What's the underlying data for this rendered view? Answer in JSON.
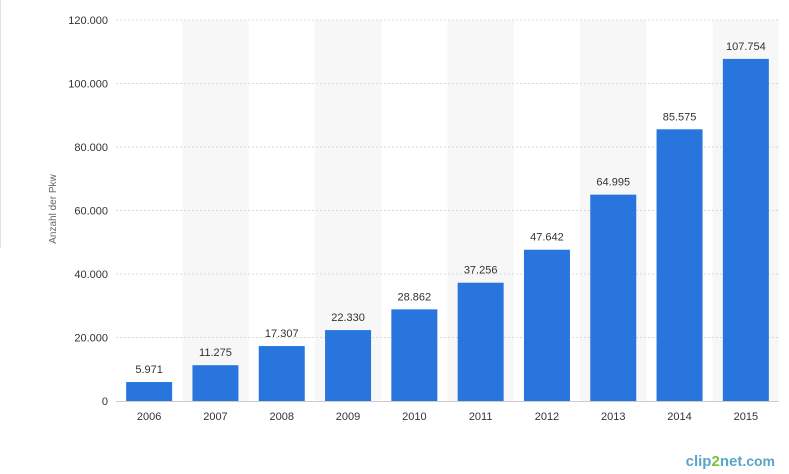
{
  "chart_data": {
    "type": "bar",
    "categories": [
      "2006",
      "2007",
      "2008",
      "2009",
      "2010",
      "2011",
      "2012",
      "2013",
      "2014",
      "2015"
    ],
    "values": [
      5971,
      11275,
      17307,
      22330,
      28862,
      37256,
      47642,
      64995,
      85575,
      107754
    ],
    "value_labels": [
      "5.971",
      "11.275",
      "17.307",
      "22.330",
      "28.862",
      "37.256",
      "47.642",
      "64.995",
      "85.575",
      "107.754"
    ],
    "ylabel": "Anzahl der Pkw",
    "xlabel": "",
    "ylim": [
      0,
      120000
    ],
    "yticks": [
      0,
      20000,
      40000,
      60000,
      80000,
      100000,
      120000
    ],
    "ytick_labels": [
      "0",
      "20.000",
      "40.000",
      "60.000",
      "80.000",
      "100.000",
      "120.000"
    ],
    "bar_color": "#2876dd",
    "band_color": "#f7f7f7",
    "grid": true
  },
  "watermark": {
    "part1": "clip",
    "part2": "2",
    "part3": "net",
    "part4": ".com"
  }
}
